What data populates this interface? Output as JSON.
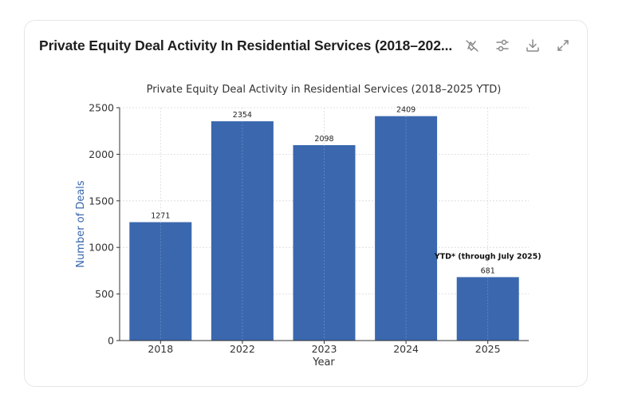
{
  "card": {
    "title": "Private Equity Deal Activity In Residential Services (2018–202...",
    "icons": [
      {
        "name": "disable-interactive-icon",
        "label": "Disable interactivity"
      },
      {
        "name": "settings-sliders-icon",
        "label": "Adjust"
      },
      {
        "name": "download-icon",
        "label": "Download"
      },
      {
        "name": "expand-icon",
        "label": "Expand"
      }
    ]
  },
  "chart_data": {
    "type": "bar",
    "title": "Private Equity Deal Activity in Residential Services (2018–2025 YTD)",
    "xlabel": "Year",
    "ylabel": "Number of Deals",
    "categories": [
      "2018",
      "2022",
      "2023",
      "2024",
      "2025"
    ],
    "values": [
      1271,
      2354,
      2098,
      2409,
      681
    ],
    "data_labels": [
      "1271",
      "2354",
      "2098",
      "2409",
      "681"
    ],
    "ylim": [
      0,
      2500
    ],
    "yticks": [
      0,
      500,
      1000,
      1500,
      2000,
      2500
    ],
    "ytick_labels": [
      "0",
      "500",
      "1000",
      "1500",
      "2000",
      "2500"
    ],
    "grid": true,
    "bar_color": "#3a67ae",
    "ylabel_color": "#3a67ae",
    "annotation": {
      "text": "YTD* (through July 2025)",
      "category": "2025"
    }
  }
}
